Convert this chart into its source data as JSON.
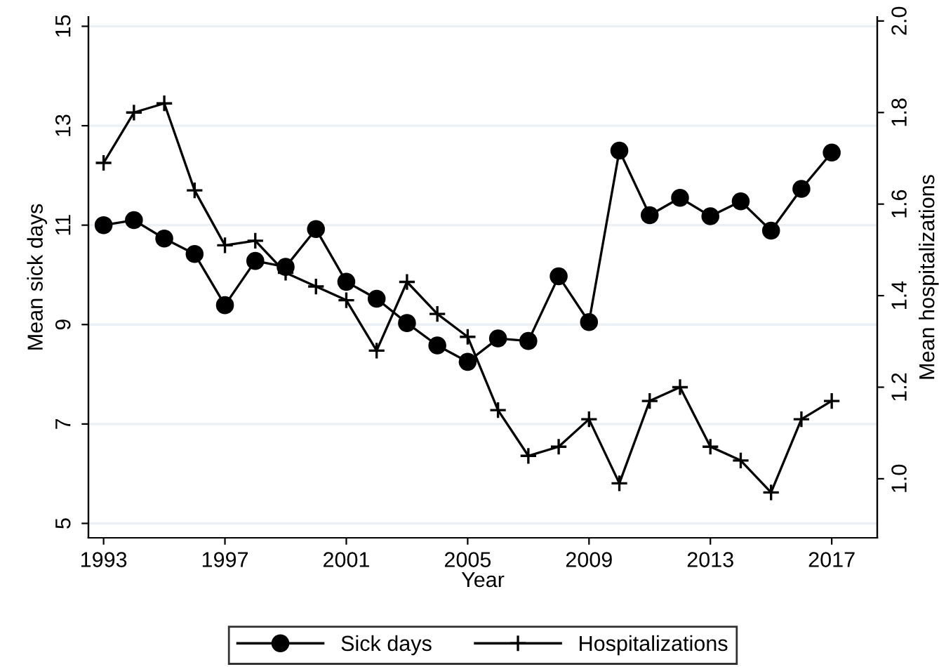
{
  "chart_data": {
    "type": "line",
    "xlabel": "Year",
    "ylabel": "Mean sick days",
    "y2label": "Mean hospitalizations",
    "x": [
      1993,
      1994,
      1995,
      1996,
      1997,
      1998,
      1999,
      2000,
      2001,
      2002,
      2003,
      2004,
      2005,
      2006,
      2007,
      2008,
      2009,
      2010,
      2011,
      2012,
      2013,
      2014,
      2015,
      2016,
      2017
    ],
    "series": [
      {
        "name": "Sick days",
        "color": "#000000",
        "marker": "circle",
        "values": [
          11.0,
          11.1,
          10.73,
          10.42,
          9.39,
          10.28,
          10.16,
          10.92,
          9.86,
          9.52,
          9.03,
          8.58,
          8.25,
          8.72,
          8.67,
          9.97,
          9.05,
          12.5,
          11.2,
          11.55,
          11.18,
          11.48,
          10.89,
          11.73,
          12.46
        ]
      },
      {
        "name": "Hospitalizations",
        "color": "#000000",
        "marker": "cross",
        "axis": "y2",
        "values": [
          1.69,
          1.8,
          1.82,
          1.63,
          1.51,
          1.52,
          1.45,
          1.42,
          1.39,
          1.28,
          1.43,
          1.36,
          1.31,
          1.15,
          1.05,
          1.07,
          1.13,
          0.99,
          1.17,
          1.2,
          1.07,
          1.04,
          0.97,
          1.13,
          1.17
        ]
      }
    ],
    "xlim": [
      1992.5,
      2018.5
    ],
    "xticks": [
      1993,
      1997,
      2001,
      2005,
      2009,
      2013,
      2017
    ],
    "ylim": [
      4.71,
      15.19
    ],
    "yticks": [
      5,
      7,
      9,
      11,
      13,
      15
    ],
    "y2lim": [
      0.871,
      2.009
    ],
    "y2ticks": [
      {
        "value": 1.0,
        "label": "1.0"
      },
      1.2,
      1.4,
      1.6,
      1.8,
      {
        "value": 2.0,
        "label": "2.0"
      }
    ],
    "grid": "y",
    "legend": "bottom",
    "line_style": "solid"
  }
}
